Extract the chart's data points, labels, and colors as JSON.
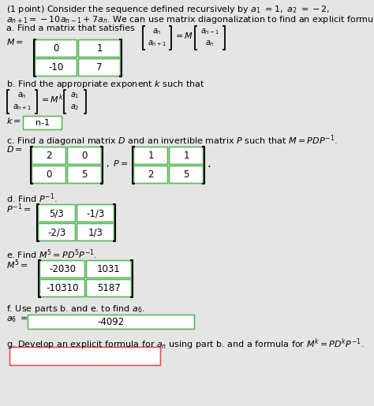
{
  "bg_color": "#e5e5e5",
  "white": "#ffffff",
  "green_border": "#5cb85c",
  "red_border": "#d9534f",
  "text_color": "#000000",
  "M_vals": [
    [
      "0",
      "1"
    ],
    [
      "-10",
      "7"
    ]
  ],
  "D_vals": [
    [
      "2",
      "0"
    ],
    [
      "0",
      "5"
    ]
  ],
  "P_vals": [
    [
      "1",
      "1"
    ],
    [
      "2",
      "5"
    ]
  ],
  "Pinv_vals": [
    [
      "5/3",
      "-1/3"
    ],
    [
      "-2/3",
      "1/3"
    ]
  ],
  "M5_vals": [
    [
      "-2030",
      "1031"
    ],
    [
      "-10310",
      "5187"
    ]
  ],
  "part_f_ans": "-4092",
  "figw": 4.74,
  "figh": 5.15,
  "dpi": 100
}
